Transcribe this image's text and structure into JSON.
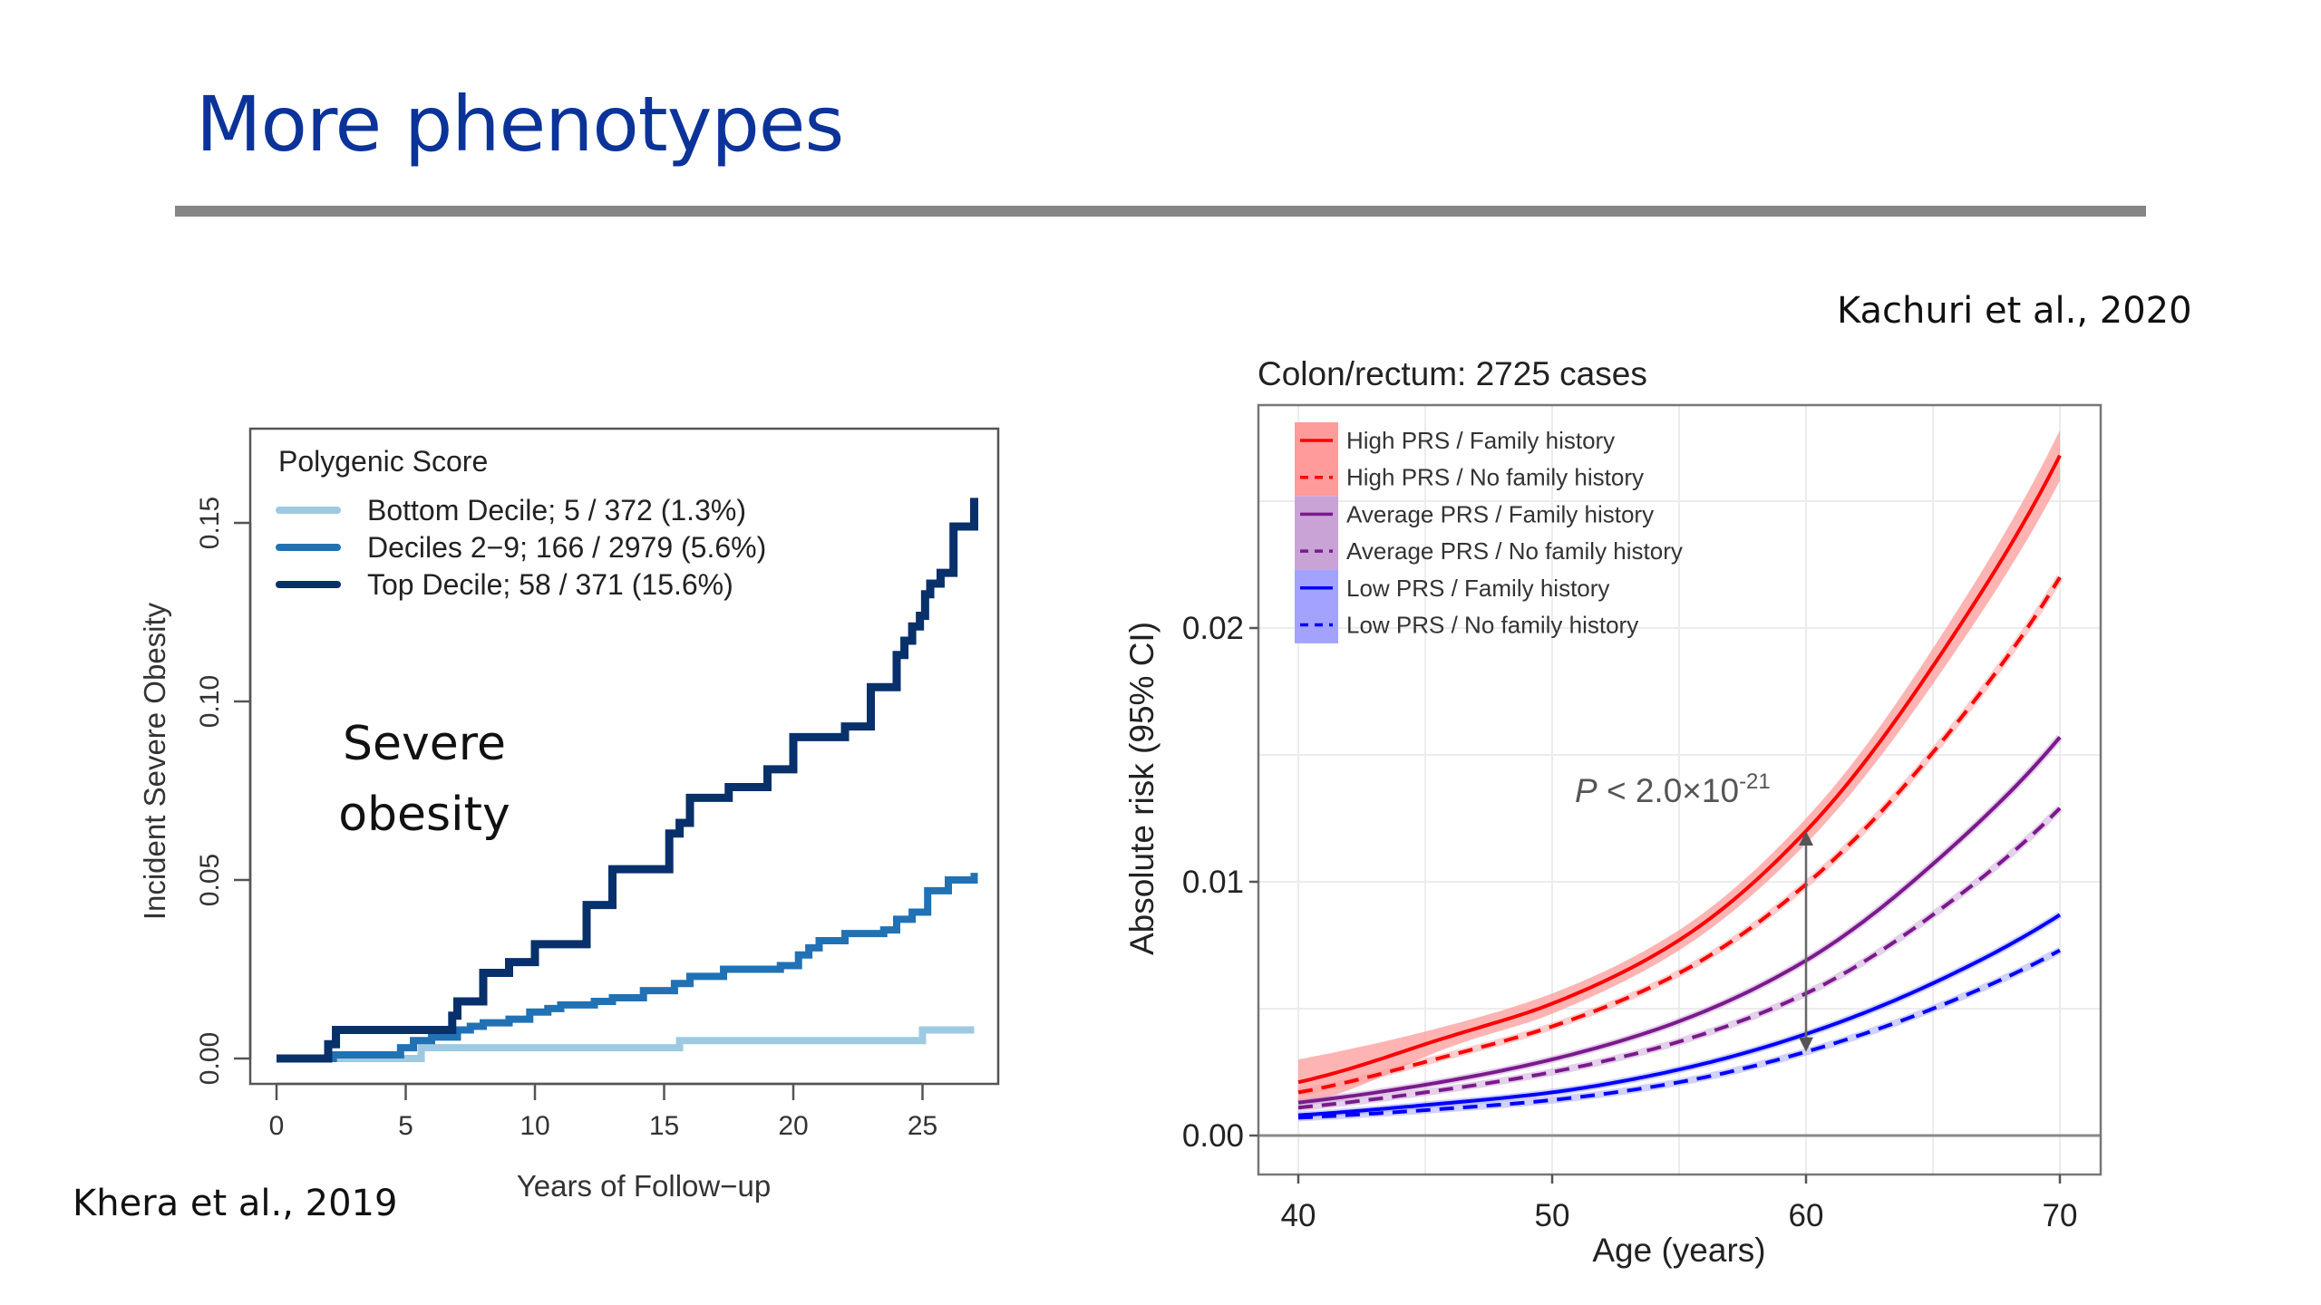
{
  "slide": {
    "title": "More phenotypes",
    "citation_left": "Khera et al., 2019",
    "citation_right": "Kachuri et al., 2020",
    "colors": {
      "title": "#0b3399",
      "rule": "#858585"
    }
  },
  "chart_data": [
    {
      "type": "line",
      "subtype": "step",
      "annotation": [
        "Severe",
        "obesity"
      ],
      "xlabel": "Years of Follow−up",
      "ylabel": "Incident Severe Obesity",
      "xlim": [
        0,
        27
      ],
      "ylim": [
        0,
        0.16
      ],
      "xticks": [
        0,
        5,
        10,
        15,
        20,
        25
      ],
      "xtick_labels": [
        "0",
        "5",
        "10",
        "15",
        "20",
        "25"
      ],
      "yticks": [
        0.0,
        0.05,
        0.1,
        0.15
      ],
      "ytick_labels": [
        "0.00",
        "0.05",
        "0.10",
        "0.15"
      ],
      "grid": false,
      "legend": {
        "title": "Polygenic Score",
        "placement": "top-left"
      },
      "series": [
        {
          "name": "Bottom Decile; 5 / 372 (1.3%)",
          "color": "#9ecae1",
          "x": [
            0,
            5.6,
            15.6,
            25.0,
            27.0
          ],
          "y": [
            0.0,
            0.003,
            0.005,
            0.008,
            0.008
          ]
        },
        {
          "name": "Deciles 2−9; 166 / 2979 (5.6%)",
          "color": "#2171b5",
          "x": [
            0,
            2.2,
            4.8,
            5.3,
            6.0,
            7.0,
            7.5,
            8.0,
            9.0,
            9.8,
            10.5,
            11.0,
            12.3,
            13.0,
            14.2,
            15.4,
            16.0,
            17.3,
            19.5,
            20.2,
            20.6,
            21.0,
            22.0,
            23.5,
            24.0,
            24.6,
            25.2,
            26.0,
            27.0
          ],
          "y": [
            0.0,
            0.001,
            0.003,
            0.005,
            0.006,
            0.008,
            0.009,
            0.01,
            0.011,
            0.013,
            0.014,
            0.015,
            0.016,
            0.017,
            0.019,
            0.021,
            0.023,
            0.025,
            0.026,
            0.029,
            0.031,
            0.033,
            0.035,
            0.036,
            0.039,
            0.041,
            0.047,
            0.05,
            0.052
          ]
        },
        {
          "name": "Top Decile; 58 / 371 (15.6%)",
          "color": "#08306b",
          "x": [
            0,
            2.0,
            2.3,
            6.8,
            7.0,
            8.0,
            9.0,
            10.0,
            12.0,
            13.0,
            15.2,
            15.6,
            16.0,
            17.5,
            19.0,
            20.0,
            22.0,
            23.0,
            24.0,
            24.3,
            24.6,
            24.9,
            25.1,
            25.3,
            25.7,
            26.2,
            27.0
          ],
          "y": [
            0.0,
            0.004,
            0.008,
            0.012,
            0.016,
            0.024,
            0.027,
            0.032,
            0.043,
            0.053,
            0.063,
            0.066,
            0.073,
            0.076,
            0.081,
            0.09,
            0.093,
            0.104,
            0.113,
            0.117,
            0.121,
            0.124,
            0.13,
            0.133,
            0.136,
            0.149,
            0.157
          ]
        }
      ]
    },
    {
      "type": "line",
      "title": "Colon/rectum: 2725 cases",
      "xlabel": "Age (years)",
      "ylabel": "Absolute risk (95% CI)",
      "xlim": [
        38.5,
        71.2
      ],
      "ylim": [
        -0.0015,
        0.0285
      ],
      "xticks": [
        40,
        50,
        60,
        70
      ],
      "xtick_labels": [
        "40",
        "50",
        "60",
        "70"
      ],
      "yticks": [
        0.0,
        0.01,
        0.02
      ],
      "ytick_labels": [
        "0.00",
        "0.01",
        "0.02"
      ],
      "grid": true,
      "legend": {
        "placement": "top-left"
      },
      "annotation": {
        "text_prefix": "P < 2.0×10",
        "text_exponent": "-21",
        "arrow_x": 60,
        "arrow_from": 0.0033,
        "arrow_to": 0.012
      },
      "x": [
        40,
        45,
        50,
        55,
        60,
        65,
        70
      ],
      "series": [
        {
          "name": "High PRS / Family history",
          "color": "#ff0000",
          "band": "#ff9b9b",
          "dash": false,
          "y": [
            0.0021,
            0.0036,
            0.0052,
            0.0077,
            0.012,
            0.0185,
            0.0268
          ],
          "ci_low": [
            0.0012,
            0.0031,
            0.0048,
            0.0073,
            0.0115,
            0.0178,
            0.0258
          ],
          "ci_high": [
            0.003,
            0.0041,
            0.0056,
            0.0081,
            0.0125,
            0.0192,
            0.0278
          ]
        },
        {
          "name": "High PRS / No family history",
          "color": "#ff0000",
          "band": "#ff9b9b",
          "dash": true,
          "y": [
            0.0017,
            0.0029,
            0.0043,
            0.0064,
            0.0099,
            0.0151,
            0.022
          ]
        },
        {
          "name": "Average PRS / Family history",
          "color": "#7a1a8c",
          "band": "#c9a3d6",
          "dash": false,
          "y": [
            0.0013,
            0.002,
            0.003,
            0.0045,
            0.0069,
            0.0107,
            0.0157
          ]
        },
        {
          "name": "Average PRS / No family history",
          "color": "#7a1a8c",
          "band": "#c9a3d6",
          "dash": true,
          "y": [
            0.0011,
            0.0017,
            0.0025,
            0.0037,
            0.0056,
            0.0087,
            0.0129
          ]
        },
        {
          "name": "Low PRS / Family history",
          "color": "#0000ff",
          "band": "#a3a3ff",
          "dash": false,
          "y": [
            0.0008,
            0.0012,
            0.0017,
            0.0026,
            0.004,
            0.006,
            0.0087
          ]
        },
        {
          "name": "Low PRS / No family history",
          "color": "#0000ff",
          "band": "#a3a3ff",
          "dash": true,
          "y": [
            0.0007,
            0.001,
            0.0014,
            0.0021,
            0.0033,
            0.005,
            0.0073
          ]
        }
      ]
    }
  ]
}
